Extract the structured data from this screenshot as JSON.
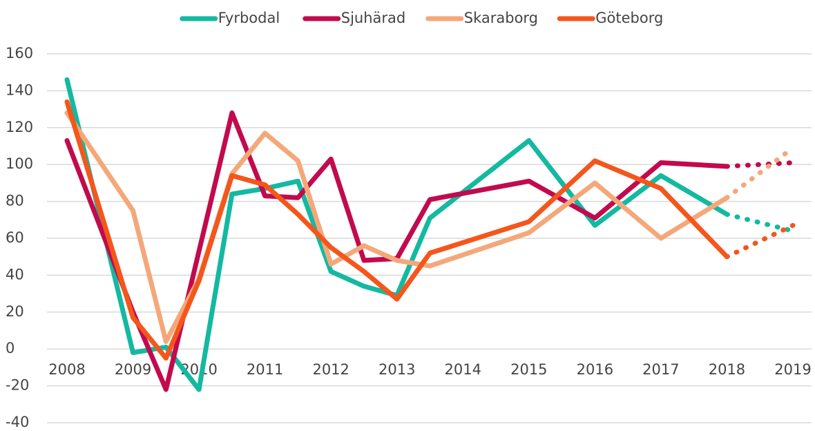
{
  "chart_data": {
    "type": "line",
    "x": [
      2008,
      2009,
      2009.5,
      2010,
      2010.5,
      2011,
      2011.5,
      2012,
      2012.5,
      2013,
      2013.5,
      2015,
      2016,
      2017,
      2018,
      2019
    ],
    "series": [
      {
        "name": "Fyrbodal",
        "color": "#13b9a0",
        "values": [
          146,
          -2,
          1,
          -22,
          84,
          87,
          91,
          42,
          34,
          29,
          71,
          113,
          67,
          94,
          73,
          64
        ]
      },
      {
        "name": "Sjuhärad",
        "color": "#c20a4e",
        "values": [
          113,
          20,
          -22,
          53,
          128,
          83,
          82,
          103,
          48,
          49,
          81,
          91,
          71,
          101,
          99,
          101
        ]
      },
      {
        "name": "Skaraborg",
        "color": "#f4a87a",
        "values": [
          128,
          75,
          4,
          38,
          95,
          117,
          102,
          46,
          56,
          48,
          45,
          63,
          90,
          60,
          82,
          109
        ]
      },
      {
        "name": "Göteborg",
        "color": "#f4561b",
        "values": [
          134,
          17,
          -5,
          37,
          94,
          89,
          73,
          55,
          42,
          27,
          52,
          69,
          102,
          87,
          50,
          67
        ]
      }
    ],
    "forecast_start": 2018,
    "xlim": [
      2008,
      2019
    ],
    "xticks": [
      2008,
      2009,
      2010,
      2011,
      2012,
      2013,
      2014,
      2015,
      2016,
      2017,
      2018,
      2019
    ],
    "ylim": [
      -40,
      160
    ],
    "yticks": [
      -40,
      -20,
      0,
      20,
      40,
      60,
      80,
      100,
      120,
      140,
      160
    ],
    "grid": true,
    "legend": "top"
  }
}
